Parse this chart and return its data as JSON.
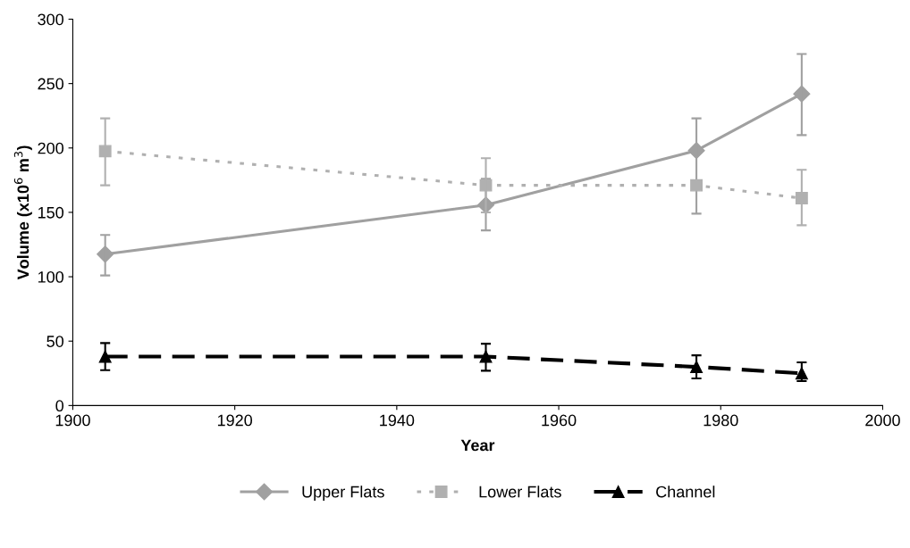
{
  "chart_data": {
    "type": "line",
    "xlabel": "Year",
    "ylabel": "Volume (x10$^{6}$ m$^{3}$)",
    "x": [
      1904,
      1951,
      1977,
      1990
    ],
    "series": [
      {
        "name": "Upper Flats",
        "color": "#a0a0a0",
        "marker": "diamond",
        "line_style": "solid",
        "values": [
          117.5,
          155.7,
          198,
          242
        ],
        "errors": [
          [
            101,
            132.5
          ],
          [
            136,
            176
          ],
          [
            149,
            223
          ],
          [
            210,
            273
          ]
        ]
      },
      {
        "name": "Lower Flats",
        "color": "#b0b0b0",
        "marker": "square",
        "line_style": "dotted",
        "values": [
          197.5,
          171,
          171,
          161
        ],
        "errors": [
          [
            171,
            223
          ],
          [
            150,
            192
          ],
          null,
          [
            140,
            183
          ]
        ]
      },
      {
        "name": "Channel",
        "color": "#000000",
        "marker": "triangle",
        "line_style": "dashed",
        "values": [
          38,
          38,
          30,
          25
        ],
        "errors": [
          [
            27.5,
            48.5
          ],
          [
            27,
            48
          ],
          [
            21,
            39
          ],
          [
            19,
            33.5
          ]
        ]
      }
    ],
    "xlim": [
      1900,
      2000
    ],
    "xticks": [
      1900,
      1920,
      1940,
      1960,
      1980,
      2000
    ],
    "ylim": [
      0,
      300
    ],
    "yticks": [
      0,
      50,
      100,
      150,
      200,
      250,
      300
    ],
    "grid": false,
    "legend": "bottom"
  }
}
